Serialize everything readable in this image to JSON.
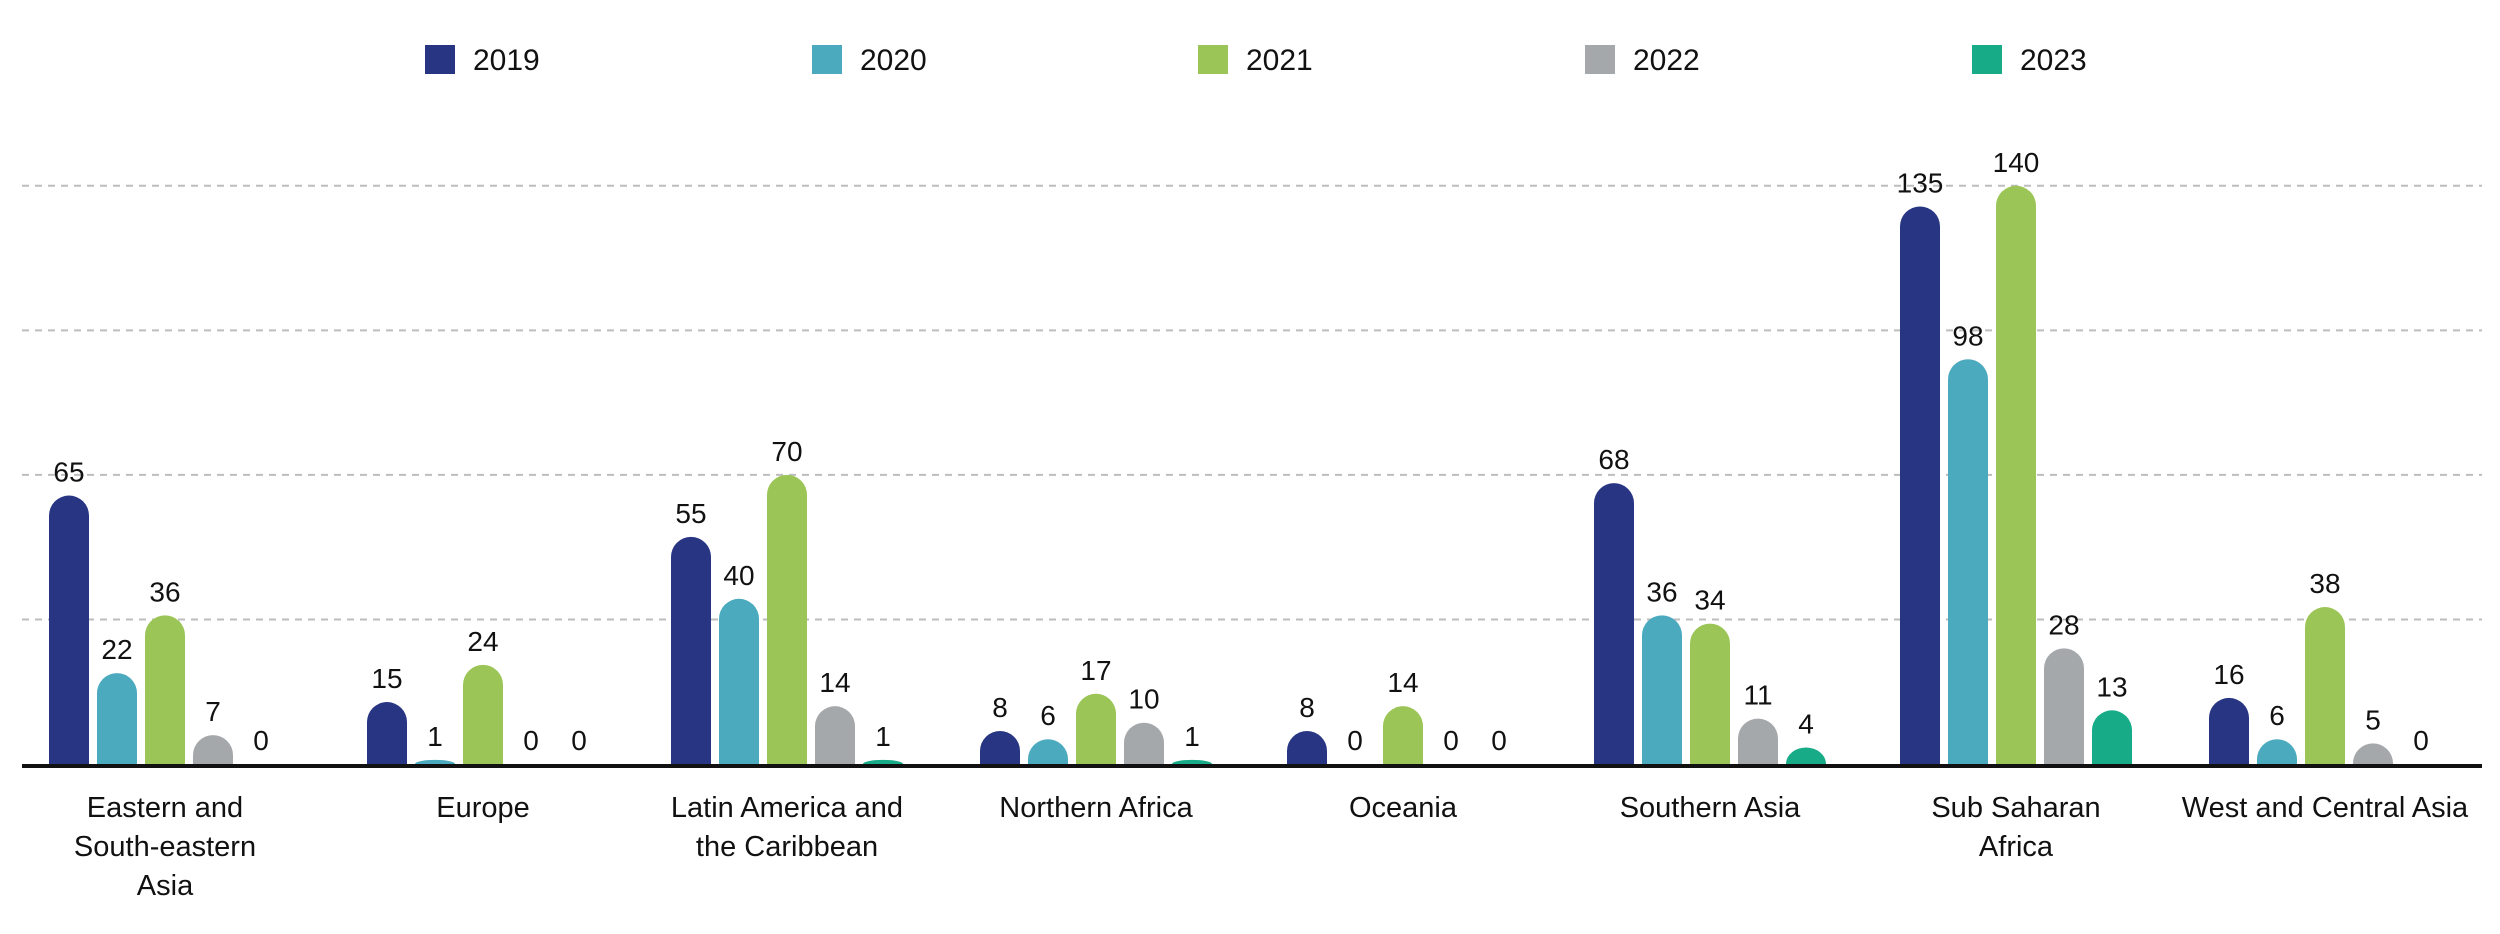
{
  "chart_data": {
    "type": "bar",
    "title": "",
    "xlabel": "",
    "ylabel": "",
    "ylim": [
      0,
      150
    ],
    "grid": true,
    "gridlines": [
      35,
      70,
      105,
      140
    ],
    "legend_position": "top",
    "categories": [
      [
        "Eastern and",
        "South-eastern",
        "Asia"
      ],
      [
        "Europe"
      ],
      [
        "Latin America and",
        "the Caribbean"
      ],
      [
        "Northern Africa"
      ],
      [
        "Oceania"
      ],
      [
        "Southern Asia"
      ],
      [
        "Sub Saharan",
        "Africa"
      ],
      [
        "West and Central Asia"
      ]
    ],
    "series": [
      {
        "name": "2019",
        "color": "#283583",
        "values": [
          65,
          15,
          55,
          8,
          8,
          68,
          135,
          16
        ]
      },
      {
        "name": "2020",
        "color": "#4BAABE",
        "values": [
          22,
          1,
          40,
          6,
          0,
          36,
          98,
          6
        ]
      },
      {
        "name": "2021",
        "color": "#9BC556",
        "values": [
          36,
          24,
          70,
          17,
          14,
          34,
          140,
          38
        ]
      },
      {
        "name": "2022",
        "color": "#A5A8AB",
        "values": [
          7,
          0,
          14,
          10,
          0,
          11,
          28,
          5
        ]
      },
      {
        "name": "2023",
        "color": "#17AB87",
        "values": [
          0,
          0,
          1,
          1,
          0,
          4,
          13,
          0
        ]
      }
    ]
  }
}
